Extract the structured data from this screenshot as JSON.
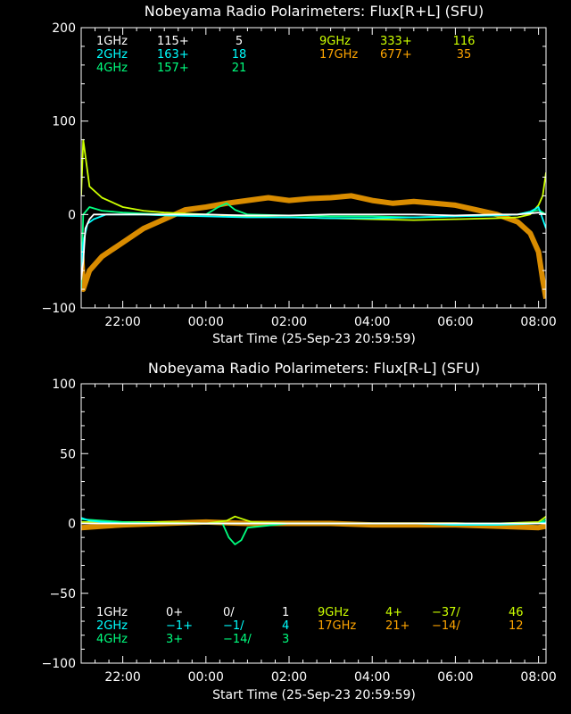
{
  "chart_data": [
    {
      "type": "line",
      "title": "Nobeyama Radio Polarimeters: Flux[R+L] (SFU)",
      "xlabel": "Start Time (25-Sep-23 20:59:59)",
      "ylabel": "",
      "ylim": [
        -100,
        200
      ],
      "yticks": [
        -100,
        0,
        100,
        200
      ],
      "xticks": [
        "22:00",
        "00:00",
        "02:00",
        "04:00",
        "06:00",
        "08:00"
      ],
      "legend": [
        {
          "band": "1GHz",
          "value": "115+",
          "extra": "5",
          "color": "#ffffff"
        },
        {
          "band": "2GHz",
          "value": "163+",
          "extra": "18",
          "color": "#00ffff"
        },
        {
          "band": "4GHz",
          "value": "157+",
          "extra": "21",
          "color": "#00ff7f"
        },
        {
          "band": "9GHz",
          "value": "333+",
          "extra": "116",
          "color": "#ccff00"
        },
        {
          "band": "17GHz",
          "value": "677+",
          "extra": "35",
          "color": "#ffa500"
        }
      ],
      "series": [
        {
          "band": "17GHz",
          "color": "#ffa500",
          "x": [
            0.0,
            0.05,
            0.2,
            0.5,
            1.0,
            1.5,
            2.0,
            2.5,
            3.0,
            3.5,
            4.0,
            4.5,
            5.0,
            5.5,
            6.0,
            6.5,
            7.0,
            7.5,
            8.0,
            8.5,
            9.0,
            9.5,
            10.0,
            10.5,
            10.8,
            11.0,
            11.1,
            11.18
          ],
          "y": [
            -30,
            -80,
            -60,
            -45,
            -30,
            -15,
            -5,
            5,
            8,
            12,
            15,
            18,
            15,
            17,
            18,
            20,
            15,
            12,
            14,
            12,
            10,
            5,
            0,
            -8,
            -20,
            -40,
            -70,
            -90
          ]
        },
        {
          "band": "9GHz",
          "color": "#ccff00",
          "x": [
            0.0,
            0.05,
            0.2,
            0.5,
            1.0,
            1.5,
            2.0,
            3.0,
            4.0,
            5.0,
            6.0,
            7.0,
            8.0,
            9.0,
            10.0,
            10.5,
            10.8,
            11.0,
            11.1,
            11.18
          ],
          "y": [
            20,
            80,
            30,
            18,
            8,
            4,
            2,
            0,
            -2,
            -3,
            -4,
            -5,
            -6,
            -5,
            -4,
            -3,
            0,
            10,
            20,
            45
          ]
        },
        {
          "band": "4GHz",
          "color": "#00ff7f",
          "x": [
            0.0,
            0.05,
            0.2,
            0.5,
            1.0,
            1.5,
            2.0,
            3.0,
            3.3,
            3.5,
            3.7,
            4.0,
            5.0,
            6.0,
            7.0,
            8.0,
            9.0,
            10.0,
            10.5,
            11.0,
            11.18
          ],
          "y": [
            -80,
            0,
            8,
            4,
            2,
            1,
            0,
            0,
            8,
            12,
            5,
            0,
            -1,
            -2,
            -2,
            -3,
            -2,
            -1,
            0,
            5,
            0
          ]
        },
        {
          "band": "2GHz",
          "color": "#00ffff",
          "x": [
            0.0,
            0.05,
            0.15,
            0.3,
            0.6,
            1.0,
            1.5,
            2.0,
            3.0,
            4.0,
            5.0,
            6.0,
            7.0,
            8.0,
            9.0,
            10.0,
            10.5,
            10.8,
            11.0,
            11.18
          ],
          "y": [
            -60,
            -30,
            -10,
            -5,
            0,
            0,
            0,
            -1,
            -2,
            -3,
            -3,
            -4,
            -4,
            -3,
            -2,
            -1,
            0,
            3,
            8,
            -15
          ]
        },
        {
          "band": "1GHz",
          "color": "#ffffff",
          "x": [
            0.0,
            0.05,
            0.1,
            0.2,
            0.3,
            0.5,
            1.0,
            1.5,
            2.0,
            3.0,
            4.0,
            5.0,
            6.0,
            7.0,
            8.0,
            9.0,
            10.0,
            10.5,
            11.0,
            11.18
          ],
          "y": [
            -70,
            -50,
            -15,
            -5,
            0,
            0,
            0,
            0,
            0,
            0,
            -1,
            -1,
            0,
            0,
            0,
            -1,
            0,
            0,
            2,
            0
          ]
        }
      ]
    },
    {
      "type": "line",
      "title": "Nobeyama Radio Polarimeters: Flux[R-L] (SFU)",
      "xlabel": "Start Time (25-Sep-23 20:59:59)",
      "ylabel": "",
      "ylim": [
        -100,
        100
      ],
      "yticks": [
        -100,
        -50,
        0,
        50,
        100
      ],
      "xticks": [
        "22:00",
        "00:00",
        "02:00",
        "04:00",
        "06:00",
        "08:00"
      ],
      "legend": [
        {
          "band": "1GHz",
          "value": "0+",
          "ratio": "0/",
          "extra": "1",
          "color": "#ffffff"
        },
        {
          "band": "2GHz",
          "value": "−1+",
          "ratio": "−1/",
          "extra": "4",
          "color": "#00ffff"
        },
        {
          "band": "4GHz",
          "value": "3+",
          "ratio": "−14/",
          "extra": "3",
          "color": "#00ff7f"
        },
        {
          "band": "9GHz",
          "value": "4+",
          "ratio": "−37/",
          "extra": "46",
          "color": "#ccff00"
        },
        {
          "band": "17GHz",
          "value": "21+",
          "ratio": "−14/",
          "extra": "12",
          "color": "#ffa500"
        }
      ],
      "series": [
        {
          "band": "17GHz",
          "color": "#ffa500",
          "x": [
            0.0,
            0.5,
            1.0,
            2.0,
            3.0,
            4.0,
            5.0,
            6.0,
            7.0,
            8.0,
            9.0,
            10.0,
            11.0,
            11.18
          ],
          "y": [
            -3,
            -2,
            -1,
            0,
            1,
            0,
            0,
            0,
            -1,
            -1,
            -1,
            -2,
            -3,
            -2
          ]
        },
        {
          "band": "9GHz",
          "color": "#ccff00",
          "x": [
            0.0,
            1.0,
            2.0,
            3.0,
            3.5,
            3.7,
            3.9,
            4.1,
            5.0,
            6.0,
            7.0,
            8.0,
            9.0,
            10.0,
            11.0,
            11.18
          ],
          "y": [
            1,
            1,
            1,
            0,
            2,
            5,
            3,
            1,
            0,
            0,
            0,
            0,
            0,
            0,
            1,
            5
          ]
        },
        {
          "band": "4GHz",
          "color": "#00ff7f",
          "x": [
            0.0,
            1.0,
            2.0,
            3.0,
            3.4,
            3.55,
            3.7,
            3.85,
            4.0,
            5.0,
            6.0,
            7.0,
            8.0,
            9.0,
            10.0,
            11.0,
            11.18
          ],
          "y": [
            3,
            1,
            0,
            0,
            0,
            -10,
            -15,
            -12,
            -3,
            0,
            0,
            0,
            0,
            0,
            0,
            0,
            3
          ]
        },
        {
          "band": "2GHz",
          "color": "#00ffff",
          "x": [
            0.0,
            0.2,
            0.5,
            1.0,
            2.0,
            3.0,
            4.0,
            5.0,
            6.0,
            7.0,
            8.0,
            9.0,
            10.0,
            11.0,
            11.18
          ],
          "y": [
            4,
            2,
            1,
            0,
            0,
            0,
            0,
            0,
            0,
            0,
            0,
            -1,
            -1,
            0,
            1
          ]
        },
        {
          "band": "1GHz",
          "color": "#ffffff",
          "x": [
            0.0,
            1.0,
            2.0,
            3.0,
            4.0,
            5.0,
            6.0,
            7.0,
            8.0,
            9.0,
            10.0,
            11.0,
            11.18
          ],
          "y": [
            0,
            0,
            0,
            0,
            0,
            0,
            0,
            0,
            0,
            0,
            0,
            0,
            0
          ]
        }
      ]
    }
  ]
}
